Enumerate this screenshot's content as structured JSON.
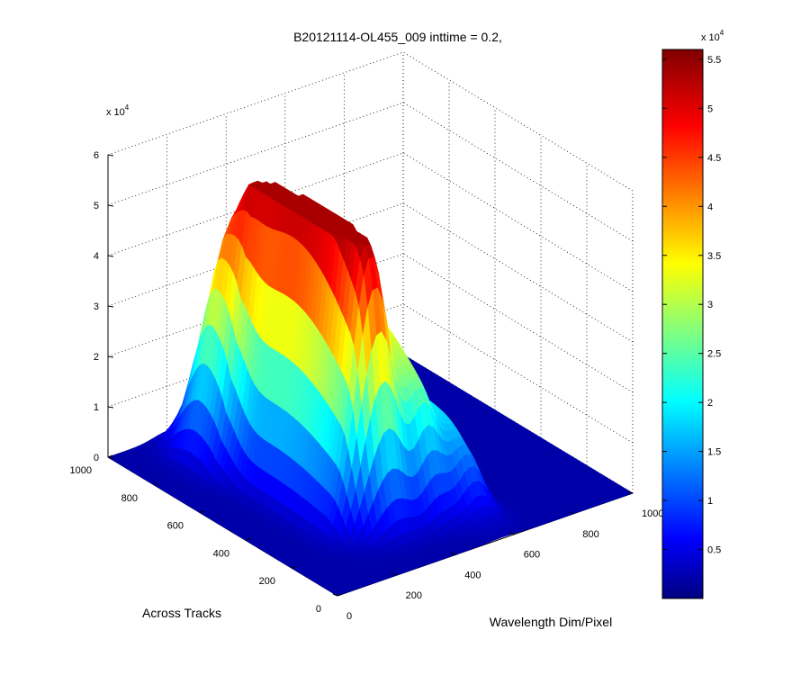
{
  "chart_data": {
    "type": "surface",
    "title": "B20121114-OL455_009 inttime = 0.2,",
    "xlabel": "Wavelength Dim/Pixel",
    "ylabel": "Across Tracks",
    "zlabel": "",
    "x_range": [
      0,
      1000
    ],
    "y_range": [
      0,
      1000
    ],
    "z_range": [
      0,
      60000
    ],
    "x_ticks": [
      "0",
      "200",
      "400",
      "600",
      "800",
      "1000"
    ],
    "y_ticks": [
      "0",
      "200",
      "400",
      "600",
      "800",
      "1000"
    ],
    "z_ticks": [
      "0",
      "1",
      "2",
      "3",
      "4",
      "5",
      "6"
    ],
    "z_multiplier": "x 10",
    "z_multiplier_exp": "4",
    "grid": true,
    "colormap": "jet",
    "colorbar": {
      "range": [
        0,
        56000
      ],
      "ticks": [
        "0.5",
        "1",
        "1.5",
        "2",
        "2.5",
        "3",
        "3.5",
        "4",
        "4.5",
        "5",
        "5.5"
      ],
      "multiplier": "x 10",
      "multiplier_exp": "4",
      "placement": "right"
    },
    "surface_peaks": [
      {
        "x": 280,
        "y_from": 150,
        "y_to": 900,
        "peak_z": 55000
      },
      {
        "x": 450,
        "y_from": 120,
        "y_to": 800,
        "peak_z": 33000
      },
      {
        "x": 340,
        "y_from": 150,
        "y_to": 800,
        "peak_z": 33000
      },
      {
        "x": 200,
        "y_from": 700,
        "y_to": 900,
        "peak_z": 21000
      },
      {
        "x": 560,
        "y_from": 100,
        "y_to": 500,
        "peak_z": 17000
      }
    ]
  }
}
